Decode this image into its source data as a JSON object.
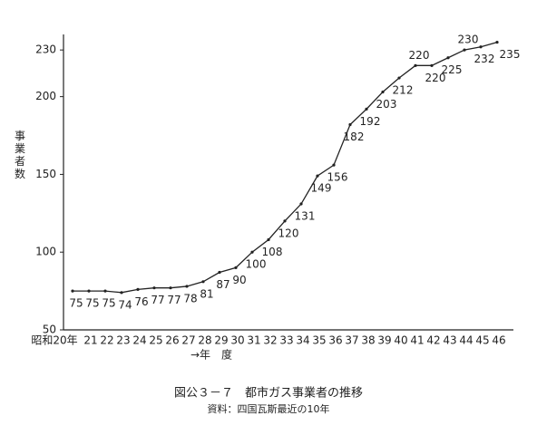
{
  "chart_data": {
    "type": "line",
    "y_label": "事業者数",
    "x_label": "→年　度",
    "caption": "図公３－７　都市ガス事業者の推移",
    "source": "資料：四国瓦斯最近の10年",
    "categories": [
      "昭和20年",
      "21",
      "22",
      "23",
      "24",
      "25",
      "26",
      "27",
      "28",
      "29",
      "30",
      "31",
      "32",
      "33",
      "34",
      "35",
      "36",
      "37",
      "38",
      "39",
      "40",
      "41",
      "42",
      "43",
      "44",
      "45",
      "46"
    ],
    "values": [
      75,
      75,
      75,
      74,
      76,
      77,
      77,
      78,
      81,
      87,
      90,
      100,
      108,
      120,
      131,
      149,
      156,
      182,
      192,
      203,
      212,
      220,
      220,
      225,
      230,
      232,
      235
    ],
    "color": "#222222",
    "ylim": [
      50,
      240
    ],
    "yticks": [
      50,
      100,
      150,
      200,
      230
    ],
    "grid": false
  }
}
